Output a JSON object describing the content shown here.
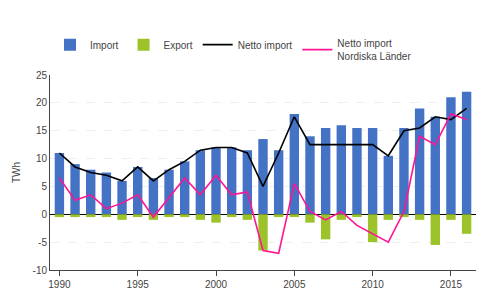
{
  "chart_data": {
    "type": "bar",
    "ylabel": "TWh",
    "x": [
      1990,
      1991,
      1992,
      1993,
      1994,
      1995,
      1996,
      1997,
      1998,
      1999,
      2000,
      2001,
      2002,
      2003,
      2004,
      2005,
      2006,
      2007,
      2008,
      2009,
      2010,
      2011,
      2012,
      2013,
      2014,
      2015,
      2016
    ],
    "series": [
      {
        "name": "Import",
        "type": "bar",
        "color": "#4472C4",
        "values": [
          11.0,
          9.0,
          8.0,
          7.5,
          6.0,
          8.5,
          6.5,
          8.0,
          9.5,
          11.5,
          12.0,
          12.0,
          11.5,
          13.5,
          11.5,
          18.0,
          14.0,
          15.5,
          16.0,
          15.5,
          15.5,
          10.5,
          15.5,
          19.0,
          17.5,
          21.0,
          22.0
        ]
      },
      {
        "name": "Export",
        "type": "bar",
        "color": "#9DC32B",
        "values": [
          -0.5,
          -0.5,
          -0.5,
          -0.5,
          -1.0,
          -0.5,
          -1.0,
          -0.5,
          -0.5,
          -1.0,
          -1.5,
          -0.5,
          -1.0,
          -6.5,
          -0.5,
          -0.5,
          -1.5,
          -4.5,
          -1.0,
          -0.5,
          -5.0,
          -1.0,
          -0.5,
          -1.0,
          -5.5,
          -1.0,
          -3.5
        ]
      },
      {
        "name": "Netto import",
        "type": "line",
        "color": "#000000",
        "values": [
          11.0,
          8.5,
          7.5,
          7.0,
          6.0,
          8.5,
          6.0,
          8.0,
          9.5,
          11.5,
          12.0,
          12.0,
          11.0,
          5.0,
          11.0,
          17.5,
          12.5,
          12.5,
          12.5,
          12.5,
          12.5,
          10.5,
          15.0,
          15.5,
          17.5,
          17.0,
          19.0
        ]
      },
      {
        "name": "Netto import\nNordiska Länder",
        "type": "line",
        "color": "#FF1493",
        "values": [
          6.5,
          2.5,
          3.5,
          1.0,
          2.0,
          3.5,
          -0.5,
          3.0,
          6.5,
          3.5,
          7.0,
          3.5,
          4.0,
          -6.5,
          -7.0,
          5.5,
          0.5,
          -1.0,
          0.5,
          -2.0,
          -3.5,
          -5.0,
          0.5,
          14.0,
          12.5,
          18.0,
          17.0
        ]
      }
    ],
    "xlim": [
      1989.4,
      2016.6
    ],
    "xticks": [
      1990,
      1995,
      2000,
      2005,
      2010,
      2015
    ],
    "ylim": [
      -10,
      25
    ],
    "yticks": [
      -10,
      -5,
      0,
      5,
      10,
      15,
      20,
      25
    ],
    "grid": true,
    "legend": "top"
  }
}
